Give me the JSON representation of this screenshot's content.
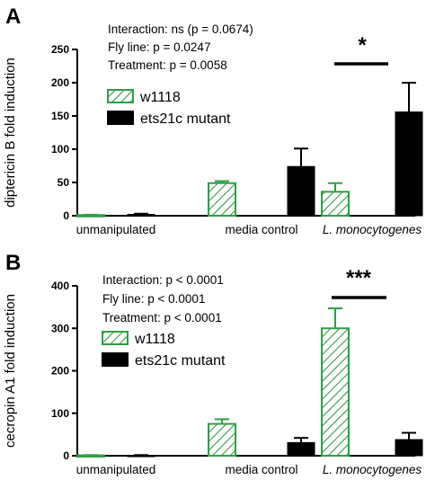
{
  "colors": {
    "w1118": "#2e9e44",
    "mutant": "#000000",
    "axis": "#000000"
  },
  "chart_data": [
    {
      "type": "bar",
      "panel_label": "A",
      "categories": [
        "unmanipulated",
        "media control",
        "L. monocytogenes"
      ],
      "italic_categories": [
        false,
        false,
        true
      ],
      "ylabel": "diptericin B fold induction",
      "ylim": [
        0,
        250
      ],
      "yticks": [
        0,
        50,
        100,
        150,
        200,
        250
      ],
      "stats_text": [
        "Interaction: ns (p = 0.0674)",
        "Fly line: p = 0.0247",
        "Treatment: p = 0.0058"
      ],
      "significance": {
        "category": "L. monocytogenes",
        "label": "*"
      },
      "series": [
        {
          "name": "w1118",
          "pattern": "hatched",
          "values": [
            1,
            49,
            36
          ],
          "error": [
            0.5,
            3,
            13
          ]
        },
        {
          "name": "ets21c mutant",
          "pattern": "solid",
          "values": [
            2,
            74,
            156
          ],
          "error": [
            1,
            27,
            44
          ]
        }
      ]
    },
    {
      "type": "bar",
      "panel_label": "B",
      "categories": [
        "unmanipulated",
        "media control",
        "L. monocytogenes"
      ],
      "italic_categories": [
        false,
        false,
        true
      ],
      "ylabel": "cecropin A1 fold induction",
      "ylim": [
        0,
        400
      ],
      "yticks": [
        0,
        100,
        200,
        300,
        400
      ],
      "stats_text": [
        "Interaction: p < 0.0001",
        "Fly line: p < 0.0001",
        "Treatment: p < 0.0001"
      ],
      "significance": {
        "category": "L. monocytogenes",
        "label": "***"
      },
      "series": [
        {
          "name": "w1118",
          "pattern": "hatched",
          "values": [
            1,
            75,
            300
          ],
          "error": [
            0.5,
            11,
            47
          ]
        },
        {
          "name": "ets21c mutant",
          "pattern": "solid",
          "values": [
            1,
            31,
            38
          ],
          "error": [
            0.5,
            11,
            16
          ]
        }
      ]
    }
  ]
}
